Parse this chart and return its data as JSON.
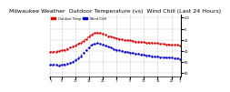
{
  "title": "Milwaukee Weather  Outdoor Temperature (vs)  Wind Chill (Last 24 Hours)",
  "title_fontsize": 4.5,
  "background_color": "#ffffff",
  "grid_color": "#cccccc",
  "temp_color": "#dd0000",
  "windchill_color": "#0000cc",
  "x_values": [
    0,
    1,
    2,
    3,
    4,
    5,
    6,
    7,
    8,
    9,
    10,
    11,
    12,
    13,
    14,
    15,
    16,
    17,
    18,
    19,
    20,
    21,
    22,
    23,
    24,
    25,
    26,
    27,
    28,
    29,
    30,
    31,
    32,
    33,
    34,
    35,
    36,
    37,
    38,
    39,
    40,
    41,
    42,
    43,
    44,
    45,
    46,
    47
  ],
  "temp_values": [
    18,
    19,
    19,
    20,
    21,
    22,
    24,
    26,
    28,
    30,
    33,
    35,
    38,
    42,
    46,
    50,
    52,
    53,
    52,
    51,
    49,
    47,
    46,
    44,
    43,
    42,
    41,
    40,
    39,
    39,
    38,
    37,
    37,
    36,
    36,
    35,
    35,
    35,
    34,
    34,
    33,
    33,
    32,
    32,
    31,
    31,
    31,
    30
  ],
  "windchill_values": [
    -5,
    -4,
    -5,
    -6,
    -5,
    -4,
    -3,
    -2,
    0,
    3,
    7,
    11,
    16,
    21,
    26,
    31,
    33,
    34,
    33,
    32,
    30,
    28,
    26,
    24,
    22,
    21,
    20,
    19,
    18,
    17,
    16,
    15,
    15,
    14,
    13,
    12,
    12,
    11,
    10,
    10,
    9,
    9,
    8,
    8,
    8,
    7,
    7,
    6
  ],
  "ylabel_right": [
    "80",
    "60",
    "40",
    "20",
    "0",
    "-20"
  ],
  "ylim": [
    -25,
    85
  ],
  "yticks": [
    -20,
    0,
    20,
    40,
    60,
    80
  ],
  "xlim": [
    -0.5,
    47.5
  ],
  "xtick_positions": [
    0,
    4,
    9,
    14,
    19,
    24,
    29,
    34,
    39,
    44,
    47
  ],
  "xtick_labels": [
    "1",
    "5",
    "10",
    "15",
    "20",
    "1",
    "5",
    "10",
    "15",
    "20",
    "1"
  ],
  "vline_positions": [
    0,
    4,
    9,
    14,
    19,
    24,
    29,
    34,
    39,
    44
  ],
  "legend_temp": "Outdoor Temp",
  "legend_wc": "Wind Chill"
}
